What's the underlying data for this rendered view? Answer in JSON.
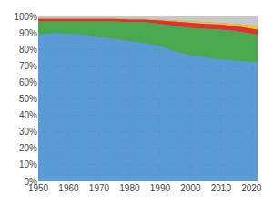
{
  "chart_data": {
    "type": "area",
    "stacked": true,
    "color": "#5b9bd5",
    "grid": true,
    "x": [
      1950,
      1955,
      1960,
      1965,
      1970,
      1975,
      1980,
      1985,
      1990,
      1995,
      2000,
      2005,
      2010,
      2015,
      2020,
      2022
    ],
    "series": [
      {
        "color": "#c8c8c8",
        "values": [
          1.0,
          1.0,
          1.0,
          1.0,
          1.0,
          1.0,
          1.5,
          1.5,
          2.0,
          2.5,
          3.0,
          3.5,
          4.0,
          4.5,
          5.5,
          6.0
        ]
      },
      {
        "color": "#f5c518",
        "values": [
          0.5,
          0.5,
          0.5,
          0.5,
          0.5,
          0.5,
          0.5,
          0.5,
          0.5,
          0.75,
          1.0,
          1.0,
          1.0,
          1.5,
          2.0,
          2.0
        ]
      },
      {
        "color": "#e03030",
        "values": [
          1.5,
          1.5,
          1.5,
          1.5,
          1.5,
          1.5,
          1.5,
          1.5,
          2.0,
          2.5,
          3.0,
          3.0,
          3.0,
          3.0,
          3.0,
          3.0
        ]
      },
      {
        "color": "#4aa84f",
        "values": [
          8.0,
          7.0,
          7.5,
          8.0,
          9.5,
          10.5,
          11.5,
          12.5,
          13.5,
          15.5,
          16.5,
          17.5,
          18.0,
          18.0,
          17.0,
          17.0
        ]
      }
    ],
    "xlim": [
      1950,
      2022
    ],
    "xticks": [
      1950,
      1960,
      1970,
      1980,
      1990,
      2000,
      2010,
      2020
    ],
    "ylim": [
      0,
      100
    ],
    "yticks": [
      {
        "value": 0,
        "label": "0%"
      },
      {
        "value": 10,
        "label": "10%"
      },
      {
        "value": 20,
        "label": "20%"
      },
      {
        "value": 30,
        "label": "30%"
      },
      {
        "value": 40,
        "label": "40%"
      },
      {
        "value": 50,
        "label": "50%"
      },
      {
        "value": 60,
        "label": "60%"
      },
      {
        "value": 70,
        "label": "70%"
      },
      {
        "value": 80,
        "label": "80%"
      },
      {
        "value": 90,
        "label": "90%"
      },
      {
        "value": 100,
        "label": "100%"
      }
    ]
  }
}
